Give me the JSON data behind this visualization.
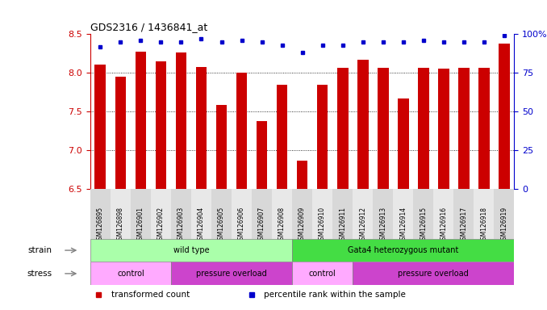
{
  "title": "GDS2316 / 1436841_at",
  "samples": [
    "GSM126895",
    "GSM126898",
    "GSM126901",
    "GSM126902",
    "GSM126903",
    "GSM126904",
    "GSM126905",
    "GSM126906",
    "GSM126907",
    "GSM126908",
    "GSM126909",
    "GSM126910",
    "GSM126911",
    "GSM126912",
    "GSM126913",
    "GSM126914",
    "GSM126915",
    "GSM126916",
    "GSM126917",
    "GSM126918",
    "GSM126919"
  ],
  "red_values": [
    8.11,
    7.95,
    8.27,
    8.15,
    8.26,
    8.08,
    7.59,
    8.0,
    7.38,
    7.85,
    6.87,
    7.85,
    8.07,
    8.17,
    8.07,
    7.67,
    8.07,
    8.05,
    8.06,
    8.06,
    8.38
  ],
  "blue_values_pct": [
    92,
    95,
    96,
    95,
    95,
    97,
    95,
    96,
    95,
    93,
    88,
    93,
    93,
    95,
    95,
    95,
    96,
    95,
    95,
    95,
    99
  ],
  "ylim_left": [
    6.5,
    8.5
  ],
  "ylim_right": [
    0,
    100
  ],
  "yticks_left": [
    6.5,
    7.0,
    7.5,
    8.0,
    8.5
  ],
  "yticks_right": [
    0,
    25,
    50,
    75,
    100
  ],
  "bar_color": "#cc0000",
  "dot_color": "#0000cc",
  "strain_groups": [
    {
      "label": "wild type",
      "start": 0,
      "end": 10,
      "color": "#aaffaa"
    },
    {
      "label": "Gata4 heterozygous mutant",
      "start": 10,
      "end": 21,
      "color": "#44dd44"
    }
  ],
  "stress_groups": [
    {
      "label": "control",
      "start": 0,
      "end": 4,
      "color": "#ffaaff"
    },
    {
      "label": "pressure overload",
      "start": 4,
      "end": 10,
      "color": "#cc44cc"
    },
    {
      "label": "control",
      "start": 10,
      "end": 13,
      "color": "#ffaaff"
    },
    {
      "label": "pressure overload",
      "start": 13,
      "end": 21,
      "color": "#cc44cc"
    }
  ],
  "legend_items": [
    {
      "color": "#cc0000",
      "label": "transformed count"
    },
    {
      "color": "#0000cc",
      "label": "percentile rank within the sample"
    }
  ],
  "plot_bg": "#ffffff",
  "grid_lines": [
    7.0,
    7.5,
    8.0
  ],
  "left_axis_color": "#cc0000",
  "right_axis_color": "#0000cc"
}
